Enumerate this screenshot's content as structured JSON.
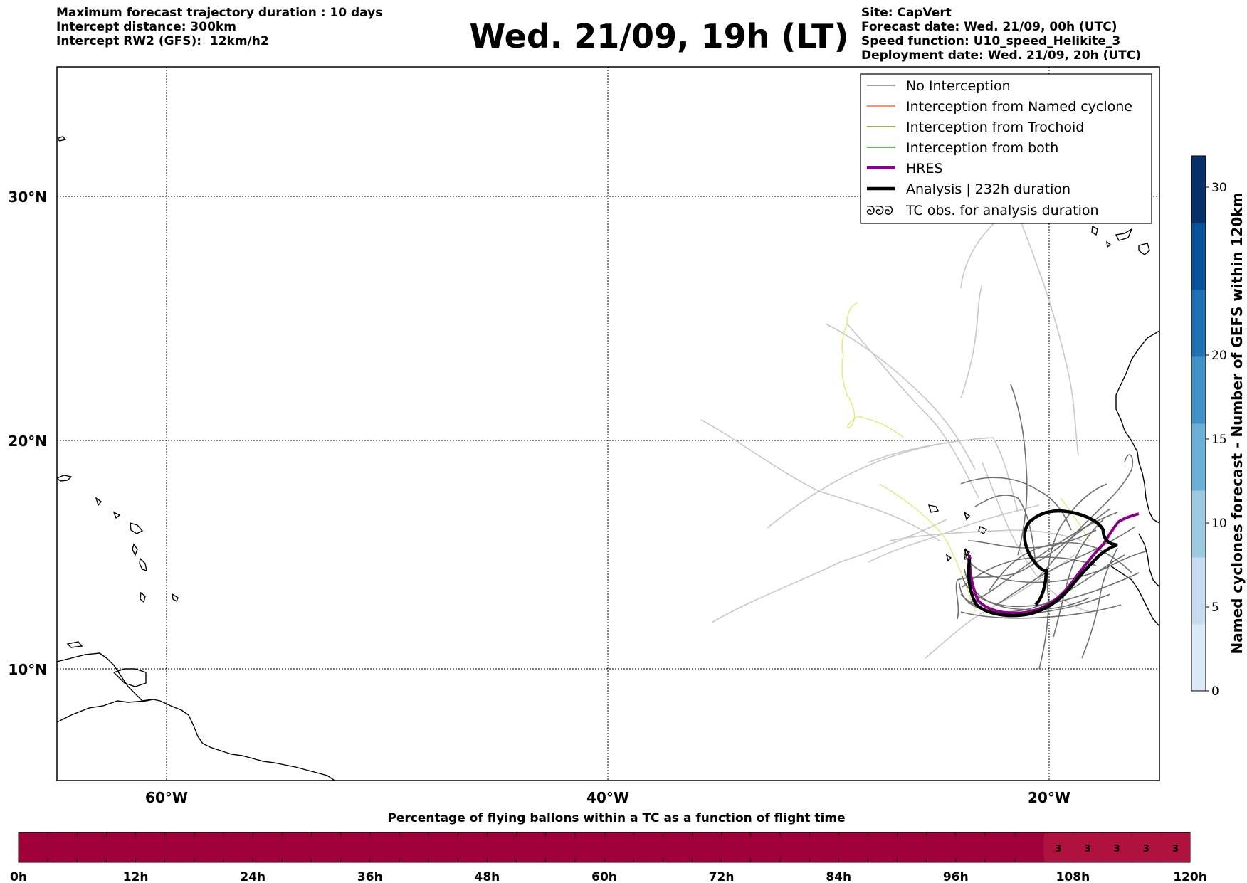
{
  "header": {
    "left_lines": [
      "Maximum forecast trajectory duration : 10 days",
      "Intercept distance: 300km",
      "Intercept RW2 (GFS):  12km/h2"
    ],
    "title": "Wed. 21/09, 19h (LT)",
    "right_lines": [
      "Site: CapVert",
      "Forecast date: Wed. 21/09, 00h (UTC)",
      "Speed function: U10_speed_Helikite_3",
      "Deployment date: Wed. 21/09, 20h (UTC)"
    ]
  },
  "map": {
    "lat_labels": [
      "30°N",
      "20°N",
      "10°N"
    ],
    "lon_labels": [
      "60°W",
      "40°W",
      "20°W"
    ]
  },
  "legend": {
    "items": [
      {
        "label": "No Interception",
        "color": "#808080",
        "style": "thin"
      },
      {
        "label": "Interception from Named cyclone",
        "color": "#ff6a33",
        "style": "thin"
      },
      {
        "label": "Interception from Trochoid",
        "color": "#8b8b22",
        "style": "thin"
      },
      {
        "label": "Interception from both",
        "color": "#2ca02c",
        "style": "thin"
      },
      {
        "label": "HRES",
        "color": "#8b008b",
        "style": "thick"
      },
      {
        "label": "Analysis | 232h duration",
        "color": "#000000",
        "style": "thick"
      },
      {
        "label": "TC obs. for analysis duration",
        "color": "#000000",
        "style": "symbol"
      }
    ],
    "symbol_glyph": "ᘐᘐᘐ"
  },
  "colorbar": {
    "label": "Named cyclones forecast - Number of GEFS within 120km",
    "ticks": [
      "0",
      "5",
      "10",
      "15",
      "20",
      "30"
    ],
    "colors": [
      "#dbe9f6",
      "#c6dbef",
      "#9ecae1",
      "#6baed6",
      "#4292c6",
      "#2171b5",
      "#08519c",
      "#08306b"
    ]
  },
  "bottom_bar": {
    "title": "Percentage of flying ballons within a TC as a function of flight time",
    "tick_labels": [
      "0h",
      "12h",
      "24h",
      "36h",
      "48h",
      "60h",
      "72h",
      "84h",
      "96h",
      "108h",
      "120h"
    ],
    "cell_values": [
      "3",
      "3",
      "3",
      "3",
      "3"
    ],
    "base_color": "#a0003a",
    "highlight_color": "#b0123f"
  },
  "colors": {
    "no_interception": "#808080",
    "light_track": "#c8c8c8",
    "trochoid_yellow": "#e6e67a",
    "hres": "#8b008b",
    "analysis": "#000000"
  }
}
